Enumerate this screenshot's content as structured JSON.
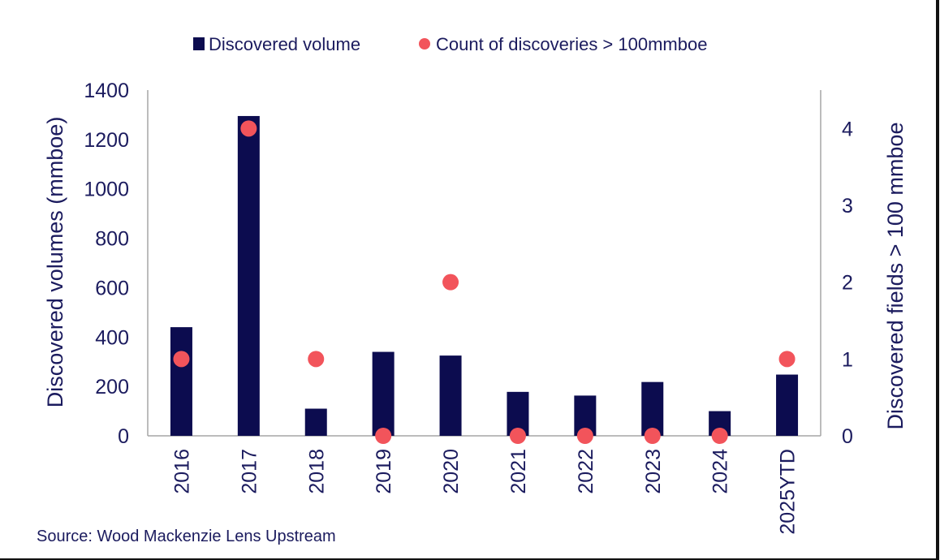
{
  "chart_data": {
    "type": "bar",
    "categories": [
      "2016",
      "2017",
      "2018",
      "2019",
      "2020",
      "2021",
      "2022",
      "2023",
      "2024",
      "2025YTD"
    ],
    "series": [
      {
        "name": "Discovered volume",
        "type": "bar",
        "axis": "left",
        "color": "#0c0c4f",
        "values": [
          440,
          1295,
          110,
          340,
          325,
          178,
          163,
          218,
          100,
          248
        ]
      },
      {
        "name": "Count of discoveries > 100mmboe",
        "type": "scatter",
        "axis": "right",
        "color": "#f2545b",
        "values": [
          1,
          4,
          1,
          0,
          2,
          0,
          0,
          0,
          0,
          1
        ]
      }
    ],
    "ylabel": "Discovered volumes (mmboe)",
    "ylabel_right": "Discovered fields > 100 mmboe",
    "ylim": [
      0,
      1400
    ],
    "ylim_right": [
      0,
      4.5
    ],
    "yticks": [
      "0",
      "200",
      "400",
      "600",
      "800",
      "1000",
      "1200",
      "1400"
    ],
    "yticks_right": [
      "0",
      "1",
      "2",
      "3",
      "4"
    ],
    "grid": false,
    "legend_position": "top-center"
  },
  "source": "Source: Wood Mackenzie Lens Upstream"
}
